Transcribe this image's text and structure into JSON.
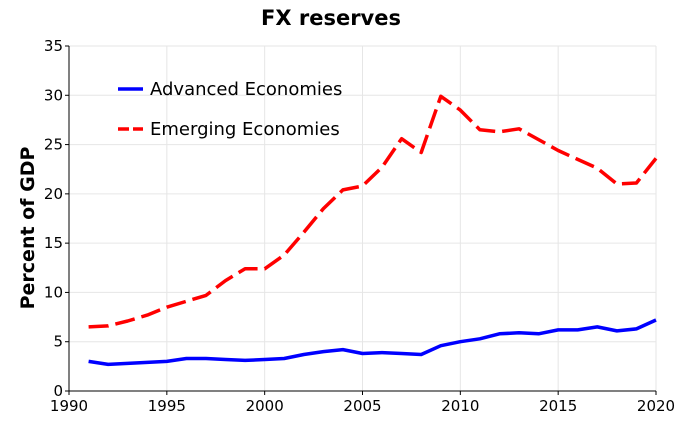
{
  "chart_data": {
    "type": "line",
    "title": "FX reserves",
    "xlabel": "",
    "ylabel": "Percent of GDP",
    "xlim": [
      1990,
      2020
    ],
    "ylim": [
      0,
      35
    ],
    "xticks": [
      1990,
      1995,
      2000,
      2005,
      2010,
      2015,
      2020
    ],
    "yticks": [
      0,
      5,
      10,
      15,
      20,
      25,
      30,
      35
    ],
    "grid": true,
    "legend_position": "top-left",
    "x": [
      1991,
      1992,
      1993,
      1994,
      1995,
      1996,
      1997,
      1998,
      1999,
      2000,
      2001,
      2002,
      2003,
      2004,
      2005,
      2006,
      2007,
      2008,
      2009,
      2010,
      2011,
      2012,
      2013,
      2014,
      2015,
      2016,
      2017,
      2018,
      2019,
      2020
    ],
    "series": [
      {
        "name": "Advanced Economies",
        "color": "#0000ff",
        "style": "solid",
        "values": [
          3.0,
          2.7,
          2.8,
          2.9,
          3.0,
          3.3,
          3.3,
          3.2,
          3.1,
          3.2,
          3.3,
          3.7,
          4.0,
          4.2,
          3.8,
          3.9,
          3.8,
          3.7,
          4.6,
          5.0,
          5.3,
          5.8,
          5.9,
          5.8,
          6.2,
          6.2,
          6.5,
          6.1,
          6.3,
          7.2
        ]
      },
      {
        "name": "Emerging Economies",
        "color": "#ff0000",
        "style": "dashed",
        "values": [
          6.5,
          6.6,
          7.1,
          7.7,
          8.5,
          9.1,
          9.7,
          11.2,
          12.4,
          12.4,
          13.8,
          16.1,
          18.5,
          20.4,
          20.8,
          22.7,
          25.6,
          24.2,
          29.9,
          28.5,
          26.5,
          26.3,
          26.6,
          25.5,
          24.4,
          23.5,
          22.6,
          21.0,
          21.1,
          23.6
        ]
      }
    ]
  }
}
